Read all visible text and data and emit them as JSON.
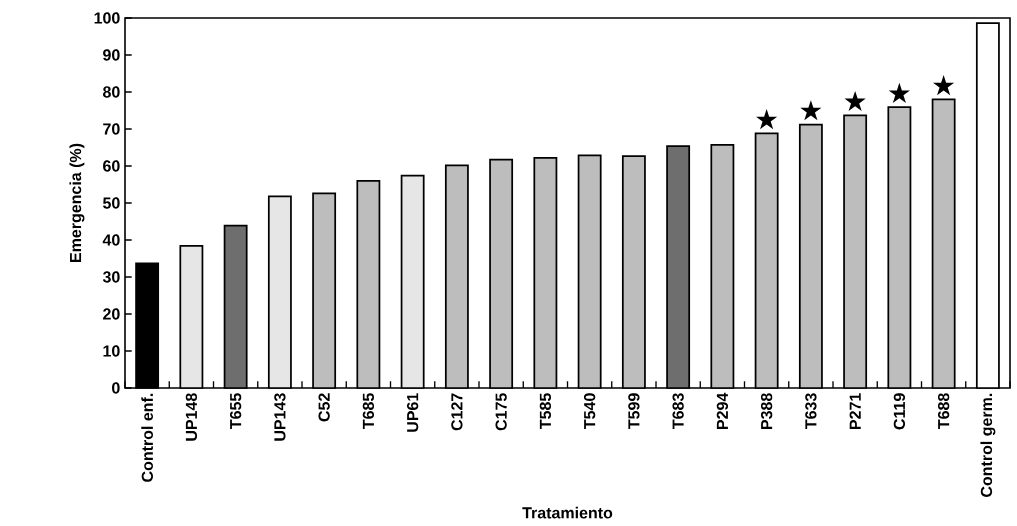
{
  "chart_data": {
    "type": "bar",
    "xlabel": "Tratamiento",
    "ylabel": "Emergencia (%)",
    "categories": [
      "Control enf.",
      "UP148",
      "T655",
      "UP143",
      "C52",
      "T685",
      "UP61",
      "C127",
      "C175",
      "T585",
      "T540",
      "T599",
      "T683",
      "P294",
      "P388",
      "T633",
      "P271",
      "C119",
      "T688",
      "Control germ."
    ],
    "values": [
      33.7,
      38.4,
      43.9,
      51.8,
      52.6,
      56,
      57.4,
      60.2,
      61.7,
      62.2,
      62.9,
      62.7,
      65.4,
      65.7,
      68.8,
      71.2,
      73.7,
      75.9,
      78,
      98.6
    ],
    "colors": [
      "#000000",
      "#e6e6e6",
      "#6e6e6e",
      "#e6e6e6",
      "#bdbdbd",
      "#bdbdbd",
      "#e6e6e6",
      "#bdbdbd",
      "#bdbdbd",
      "#bdbdbd",
      "#bdbdbd",
      "#bdbdbd",
      "#6e6e6e",
      "#bdbdbd",
      "#bdbdbd",
      "#bdbdbd",
      "#bdbdbd",
      "#bdbdbd",
      "#bdbdbd",
      "#ffffff"
    ],
    "ylim": [
      0,
      100
    ],
    "yticks": [
      0,
      10,
      20,
      30,
      40,
      50,
      60,
      70,
      80,
      90,
      100
    ],
    "grid": false,
    "annotations": [
      {
        "text": "★",
        "x": "P388",
        "y": 68.8
      },
      {
        "text": "★",
        "x": "T633",
        "y": 71.2
      },
      {
        "text": "★",
        "x": "P271",
        "y": 73.7
      },
      {
        "text": "★",
        "x": "C119",
        "y": 75.9
      },
      {
        "text": "★",
        "x": "T688",
        "y": 78
      }
    ]
  }
}
